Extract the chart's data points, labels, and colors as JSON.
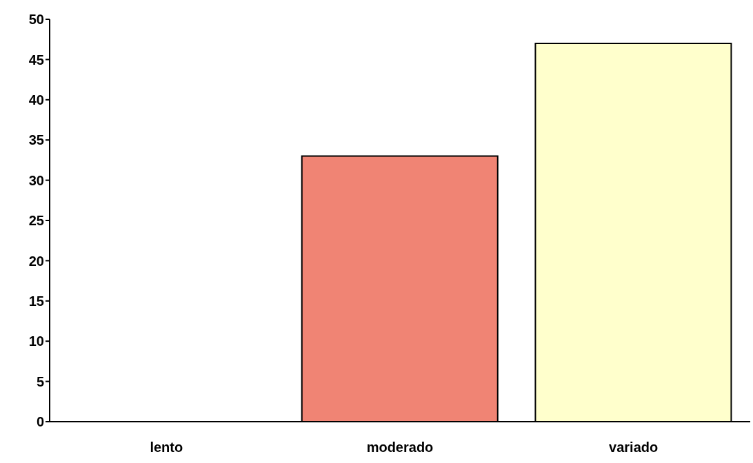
{
  "chart_data": {
    "type": "bar",
    "categories": [
      "lento",
      "moderado",
      "variado"
    ],
    "values": [
      0,
      33,
      47
    ],
    "colors": [
      "#9999ff",
      "#f08474",
      "#ffffcc"
    ],
    "ylim": [
      0,
      50
    ],
    "yticks": [
      0,
      5,
      10,
      15,
      20,
      25,
      30,
      35,
      40,
      45,
      50
    ],
    "grid": false
  }
}
